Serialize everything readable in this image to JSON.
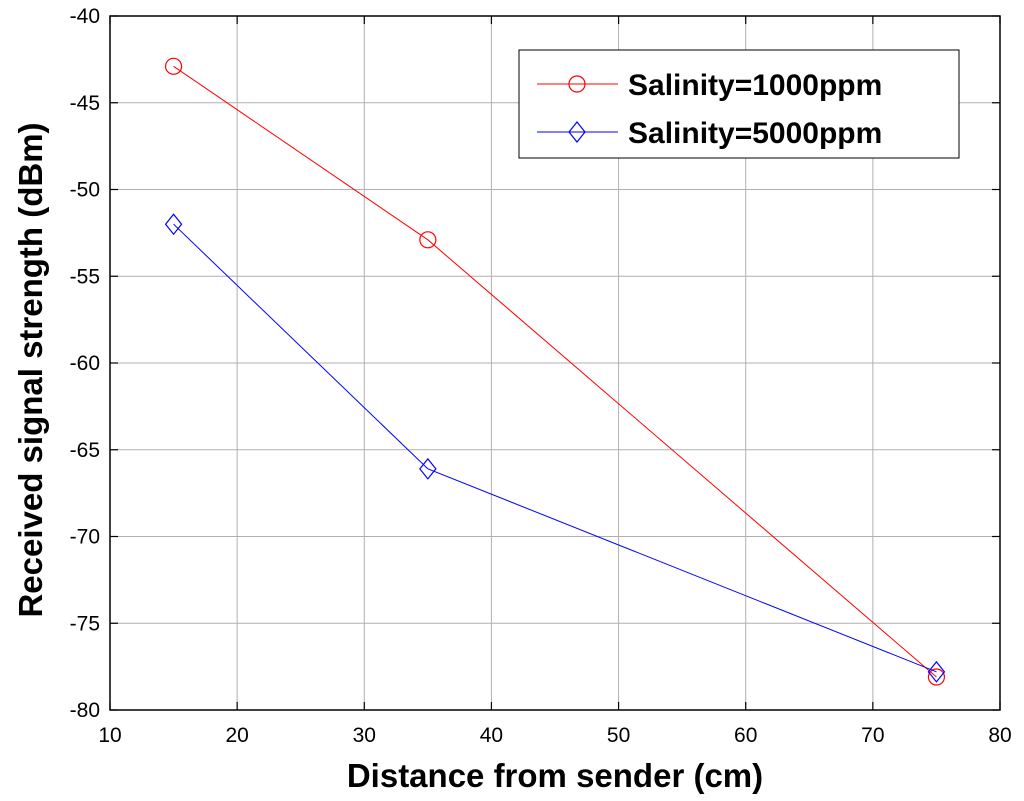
{
  "chart_data": {
    "type": "line",
    "title": "",
    "xlabel": "Distance from sender (cm)",
    "ylabel": "Received signal strength (dBm)",
    "xlim": [
      10,
      80
    ],
    "ylim": [
      -80,
      -40
    ],
    "xticks": [
      10,
      20,
      30,
      40,
      50,
      60,
      70,
      80
    ],
    "yticks": [
      -40,
      -45,
      -50,
      -55,
      -60,
      -65,
      -70,
      -75,
      -80
    ],
    "grid": true,
    "legend_position": "top-right",
    "series": [
      {
        "name": "Salinity=1000ppm",
        "color": "#ff0000",
        "marker": "circle",
        "x": [
          15,
          35,
          75
        ],
        "y": [
          -42.9,
          -52.9,
          -78.1
        ]
      },
      {
        "name": "Salinity=5000ppm",
        "color": "#0000ff",
        "marker": "diamond",
        "x": [
          15,
          35,
          75
        ],
        "y": [
          -52.0,
          -66.1,
          -77.8
        ]
      }
    ]
  }
}
